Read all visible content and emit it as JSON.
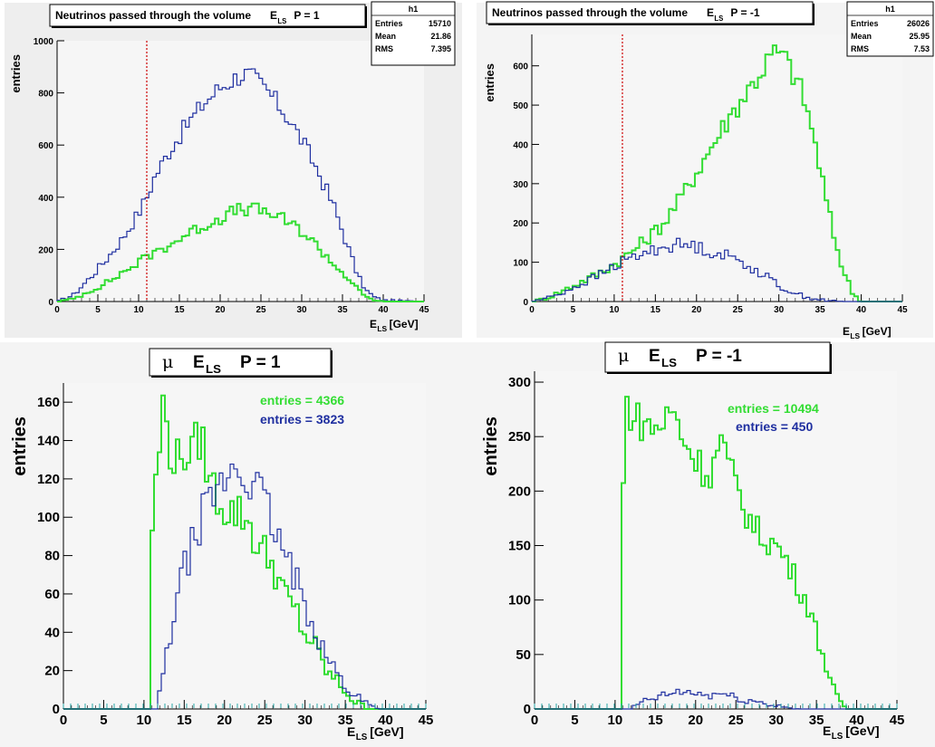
{
  "chart_data": [
    {
      "type": "histogram",
      "title": "Neutrinos passed through the volume",
      "title_symbol": "E",
      "title_sub": "LS",
      "title_tail": "P = 1",
      "ylabel": "entries",
      "xlabel_main": "E",
      "xlabel_sub": "LS",
      "xlabel_tail": "[GeV]",
      "xlim": [
        0,
        45
      ],
      "ylim": [
        0,
        1000
      ],
      "xticks": [
        0,
        5,
        10,
        15,
        20,
        25,
        30,
        35,
        40,
        45
      ],
      "yticks": [
        0,
        200,
        400,
        600,
        800,
        1000
      ],
      "cut_line": 11,
      "stats": {
        "name": "h1",
        "rows": [
          [
            "Entries",
            "15710"
          ],
          [
            "Mean",
            "21.86"
          ],
          [
            "RMS",
            "7.395"
          ]
        ]
      },
      "series": [
        {
          "color": "#1f2fa0",
          "knots": [
            [
              0,
              0
            ],
            [
              2,
              25
            ],
            [
              4,
              90
            ],
            [
              6,
              160
            ],
            [
              8,
              240
            ],
            [
              10,
              340
            ],
            [
              11,
              400
            ],
            [
              12,
              480
            ],
            [
              14,
              590
            ],
            [
              16,
              680
            ],
            [
              18,
              760
            ],
            [
              20,
              820
            ],
            [
              22,
              860
            ],
            [
              23,
              875
            ],
            [
              24,
              860
            ],
            [
              26,
              800
            ],
            [
              28,
              720
            ],
            [
              30,
              620
            ],
            [
              32,
              500
            ],
            [
              34,
              360
            ],
            [
              35,
              270
            ],
            [
              36,
              180
            ],
            [
              37,
              90
            ],
            [
              38,
              40
            ],
            [
              39,
              15
            ],
            [
              40,
              5
            ],
            [
              45,
              0
            ]
          ]
        },
        {
          "color": "#33dd33",
          "knots": [
            [
              0,
              0
            ],
            [
              2,
              10
            ],
            [
              4,
              40
            ],
            [
              6,
              70
            ],
            [
              8,
              110
            ],
            [
              10,
              150
            ],
            [
              11,
              170
            ],
            [
              12,
              190
            ],
            [
              14,
              220
            ],
            [
              16,
              260
            ],
            [
              18,
              290
            ],
            [
              20,
              320
            ],
            [
              22,
              350
            ],
            [
              24,
              355
            ],
            [
              26,
              340
            ],
            [
              28,
              310
            ],
            [
              30,
              270
            ],
            [
              32,
              210
            ],
            [
              34,
              140
            ],
            [
              35,
              110
            ],
            [
              36,
              80
            ],
            [
              37,
              40
            ],
            [
              38,
              15
            ],
            [
              39,
              5
            ],
            [
              40,
              0
            ],
            [
              45,
              0
            ]
          ]
        }
      ]
    },
    {
      "type": "histogram",
      "title": "Neutrinos passed through the volume",
      "title_symbol": "E",
      "title_sub": "LS",
      "title_tail": "P = -1",
      "ylabel": "entries",
      "xlabel_main": "E",
      "xlabel_sub": "LS",
      "xlabel_tail": "[GeV]",
      "xlim": [
        0,
        45
      ],
      "ylim": [
        0,
        680
      ],
      "xticks": [
        0,
        5,
        10,
        15,
        20,
        25,
        30,
        35,
        40,
        45
      ],
      "yticks": [
        0,
        100,
        200,
        300,
        400,
        500,
        600
      ],
      "cut_line": 11,
      "stats": {
        "name": "h1",
        "rows": [
          [
            "Entries",
            "26026"
          ],
          [
            "Mean",
            "25.95"
          ],
          [
            "RMS",
            "7.53"
          ]
        ]
      },
      "series": [
        {
          "color": "#33dd33",
          "knots": [
            [
              0,
              0
            ],
            [
              2,
              10
            ],
            [
              4,
              30
            ],
            [
              6,
              50
            ],
            [
              8,
              70
            ],
            [
              10,
              95
            ],
            [
              11,
              110
            ],
            [
              12,
              125
            ],
            [
              14,
              160
            ],
            [
              16,
              200
            ],
            [
              18,
              260
            ],
            [
              20,
              330
            ],
            [
              22,
              400
            ],
            [
              24,
              470
            ],
            [
              26,
              530
            ],
            [
              28,
              590
            ],
            [
              29,
              625
            ],
            [
              30,
              635
            ],
            [
              31,
              610
            ],
            [
              32,
              570
            ],
            [
              33,
              520
            ],
            [
              34,
              440
            ],
            [
              35,
              340
            ],
            [
              36,
              230
            ],
            [
              37,
              140
            ],
            [
              38,
              70
            ],
            [
              39,
              20
            ],
            [
              40,
              0
            ],
            [
              45,
              0
            ]
          ]
        },
        {
          "color": "#1f2fa0",
          "knots": [
            [
              0,
              0
            ],
            [
              2,
              10
            ],
            [
              4,
              25
            ],
            [
              6,
              45
            ],
            [
              8,
              65
            ],
            [
              10,
              90
            ],
            [
              12,
              110
            ],
            [
              14,
              125
            ],
            [
              16,
              140
            ],
            [
              18,
              145
            ],
            [
              20,
              140
            ],
            [
              22,
              125
            ],
            [
              24,
              115
            ],
            [
              26,
              95
            ],
            [
              28,
              70
            ],
            [
              30,
              40
            ],
            [
              32,
              20
            ],
            [
              34,
              8
            ],
            [
              36,
              2
            ],
            [
              38,
              0
            ],
            [
              45,
              0
            ]
          ]
        }
      ]
    },
    {
      "type": "histogram",
      "title_mu": "μ",
      "title_symbol": "E",
      "title_sub": "LS",
      "title_tail": "P =  1",
      "ylabel": "entries",
      "xlabel_main": "E",
      "xlabel_sub": "LS",
      "xlabel_tail": "[GeV]",
      "xlim": [
        0,
        45
      ],
      "ylim": [
        0,
        170
      ],
      "xticks": [
        0,
        5,
        10,
        15,
        20,
        25,
        30,
        35,
        40,
        45
      ],
      "yticks": [
        0,
        20,
        40,
        60,
        80,
        100,
        120,
        140,
        160
      ],
      "annotations": [
        {
          "text": "entries = 4366",
          "color": "#33dd33"
        },
        {
          "text": "entries =  3823",
          "color": "#1f2fa0"
        }
      ],
      "series": [
        {
          "color": "#33dd33",
          "knots": [
            [
              0,
              0
            ],
            [
              10.9,
              0
            ],
            [
              11,
              95
            ],
            [
              12,
              140
            ],
            [
              12.5,
              163
            ],
            [
              13,
              140
            ],
            [
              14,
              128
            ],
            [
              15,
              135
            ],
            [
              16,
              132
            ],
            [
              17,
              144
            ],
            [
              18,
              122
            ],
            [
              19,
              112
            ],
            [
              20,
              105
            ],
            [
              21,
              103
            ],
            [
              22,
              102
            ],
            [
              23,
              98
            ],
            [
              24,
              85
            ],
            [
              25,
              82
            ],
            [
              26,
              75
            ],
            [
              27,
              65
            ],
            [
              28,
              55
            ],
            [
              29,
              50
            ],
            [
              30,
              38
            ],
            [
              31,
              35
            ],
            [
              32,
              25
            ],
            [
              33,
              18
            ],
            [
              34,
              14
            ],
            [
              35,
              10
            ],
            [
              36,
              4
            ],
            [
              37,
              2
            ],
            [
              38,
              0
            ],
            [
              45,
              0
            ]
          ]
        },
        {
          "color": "#1f2fa0",
          "knots": [
            [
              0,
              0
            ],
            [
              11.5,
              0
            ],
            [
              12,
              10
            ],
            [
              13,
              30
            ],
            [
              14,
              58
            ],
            [
              15,
              72
            ],
            [
              16,
              85
            ],
            [
              17,
              98
            ],
            [
              18,
              108
            ],
            [
              19,
              112
            ],
            [
              20,
              118
            ],
            [
              21,
              128
            ],
            [
              22,
              122
            ],
            [
              23,
              120
            ],
            [
              24,
              115
            ],
            [
              25,
              108
            ],
            [
              26,
              95
            ],
            [
              27,
              85
            ],
            [
              28,
              75
            ],
            [
              29,
              65
            ],
            [
              30,
              55
            ],
            [
              31,
              45
            ],
            [
              32,
              35
            ],
            [
              33,
              25
            ],
            [
              34,
              18
            ],
            [
              35,
              12
            ],
            [
              36,
              8
            ],
            [
              37,
              5
            ],
            [
              38,
              2
            ],
            [
              39,
              0
            ],
            [
              45,
              0
            ]
          ]
        }
      ]
    },
    {
      "type": "histogram",
      "title_mu": "μ",
      "title_symbol": "E",
      "title_sub": "LS",
      "title_tail": "P = -1",
      "ylabel": "entries",
      "xlabel_main": "E",
      "xlabel_sub": "LS",
      "xlabel_tail": "[GeV]",
      "xlim": [
        0,
        45
      ],
      "ylim": [
        0,
        310
      ],
      "xticks": [
        0,
        5,
        10,
        15,
        20,
        25,
        30,
        35,
        40,
        45
      ],
      "yticks": [
        0,
        50,
        100,
        150,
        200,
        250,
        300
      ],
      "annotations": [
        {
          "text": "entries = 10494",
          "color": "#33dd33"
        },
        {
          "text": "entries =  450",
          "color": "#1f2fa0"
        }
      ],
      "series": [
        {
          "color": "#33dd33",
          "knots": [
            [
              0,
              0
            ],
            [
              10.9,
              0
            ],
            [
              11,
              200
            ],
            [
              11.5,
              285
            ],
            [
              12,
              270
            ],
            [
              13,
              265
            ],
            [
              14,
              260
            ],
            [
              15,
              258
            ],
            [
              16,
              262
            ],
            [
              17,
              275
            ],
            [
              18,
              258
            ],
            [
              19,
              240
            ],
            [
              20,
              230
            ],
            [
              21,
              220
            ],
            [
              22,
              215
            ],
            [
              23,
              250
            ],
            [
              24,
              225
            ],
            [
              25,
              205
            ],
            [
              26,
              185
            ],
            [
              27,
              170
            ],
            [
              28,
              160
            ],
            [
              29,
              155
            ],
            [
              30,
              150
            ],
            [
              31,
              140
            ],
            [
              32,
              125
            ],
            [
              33,
              110
            ],
            [
              34,
              95
            ],
            [
              35,
              70
            ],
            [
              36,
              45
            ],
            [
              37,
              20
            ],
            [
              38,
              5
            ],
            [
              39,
              0
            ],
            [
              45,
              0
            ]
          ]
        },
        {
          "color": "#1f2fa0",
          "knots": [
            [
              0,
              0
            ],
            [
              12,
              0
            ],
            [
              13,
              5
            ],
            [
              14,
              8
            ],
            [
              15,
              10
            ],
            [
              16,
              12
            ],
            [
              17,
              14
            ],
            [
              18,
              16
            ],
            [
              19,
              15
            ],
            [
              20,
              14
            ],
            [
              21,
              13
            ],
            [
              22,
              12
            ],
            [
              23,
              15
            ],
            [
              24,
              12
            ],
            [
              25,
              10
            ],
            [
              26,
              8
            ],
            [
              27,
              7
            ],
            [
              28,
              6
            ],
            [
              29,
              4
            ],
            [
              30,
              3
            ],
            [
              31,
              2
            ],
            [
              32,
              1
            ],
            [
              33,
              0
            ],
            [
              45,
              0
            ]
          ]
        }
      ]
    }
  ]
}
